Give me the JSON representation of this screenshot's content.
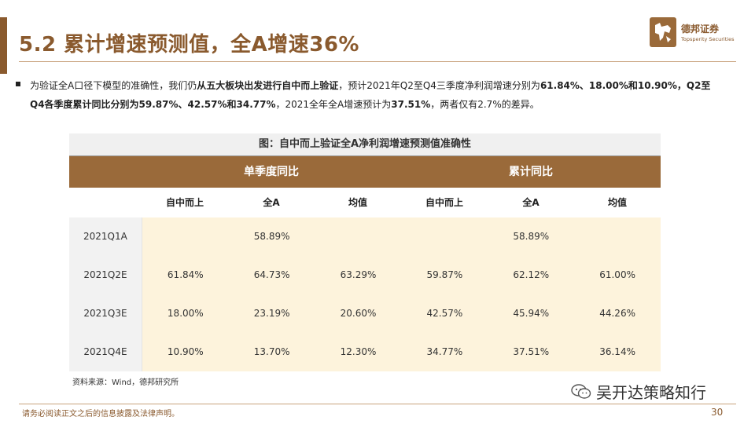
{
  "slide": {
    "title": "5.2 累计增速预测值，全A增速36%",
    "logo": {
      "brand": "德邦证券",
      "brand_en": "Topsperity Securities",
      "icon": "bull-logo-icon",
      "color": "#8a5a2e"
    },
    "paragraph": {
      "t1": "为验证全A口径下模型的准确性，我们仍",
      "b1": "从五大板块出发进行自中而上验证",
      "t2": "，预计2021年Q2至Q4三季度净利润增速分别为",
      "b2": "61.84%、18.00%和10.90%，Q2至Q4各季度累计同比分别为59.87%、42.57%和34.77%",
      "t3": "，2021全年全A增速预计为",
      "b3": "37.51%",
      "t4": "，两者仅有2.7%的差异。"
    },
    "source": "资料来源：Wind，德邦研究所",
    "wechat": "吴开达策略知行",
    "disclaimer": "请务必阅读正文之后的信息披露及法律声明。",
    "page_number": "30"
  },
  "table": {
    "caption": "图：自中而上验证全A净利润增速预测值准确性",
    "groups": [
      "单季度同比",
      "累计同比"
    ],
    "columns": [
      "自中而上",
      "全A",
      "均值",
      "自中而上",
      "全A",
      "均值"
    ],
    "rows": [
      {
        "label": "2021Q1A",
        "cells": [
          "",
          "58.89%",
          "",
          "",
          "58.89%",
          ""
        ]
      },
      {
        "label": "2021Q2E",
        "cells": [
          "61.84%",
          "64.73%",
          "63.29%",
          "59.87%",
          "62.12%",
          "61.00%"
        ]
      },
      {
        "label": "2021Q3E",
        "cells": [
          "18.00%",
          "23.19%",
          "20.60%",
          "42.57%",
          "45.94%",
          "44.26%"
        ]
      },
      {
        "label": "2021Q4E",
        "cells": [
          "10.90%",
          "13.70%",
          "12.30%",
          "34.77%",
          "37.51%",
          "36.14%"
        ]
      }
    ],
    "colors": {
      "header": "#9a6a3a",
      "data_fill": "#fdf3dc",
      "row_label_fill": "#f2f2f2"
    }
  }
}
